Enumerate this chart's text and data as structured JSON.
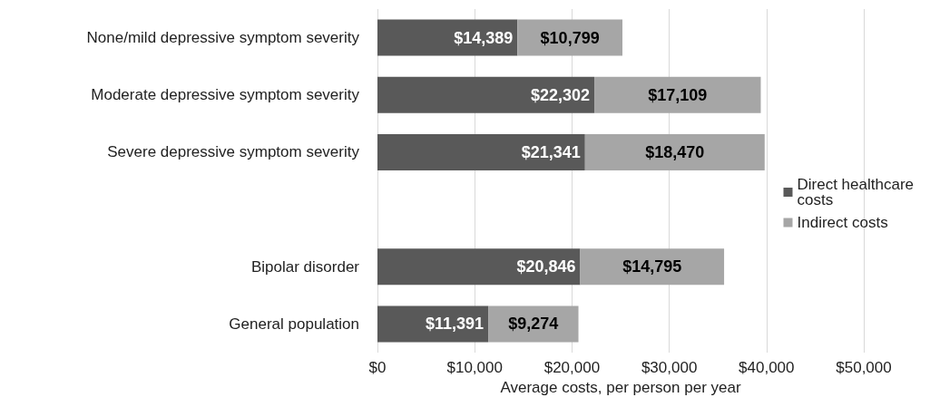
{
  "chart_data": {
    "type": "bar",
    "orientation": "horizontal",
    "stacked": true,
    "categories": [
      "None/mild depressive symptom severity",
      "Moderate depressive symptom severity",
      "Severe depressive symptom severity",
      null,
      "Bipolar disorder",
      "General population"
    ],
    "series": [
      {
        "name": "Direct healthcare costs",
        "color": "#595959",
        "values": [
          14389,
          22302,
          21341,
          null,
          20846,
          11391
        ],
        "value_labels": [
          "$14,389",
          "$22,302",
          "$21,341",
          null,
          "$20,846",
          "$11,391"
        ]
      },
      {
        "name": "Indirect costs",
        "color": "#a6a6a6",
        "values": [
          10799,
          17109,
          18470,
          null,
          14795,
          9274
        ],
        "value_labels": [
          "$10,799",
          "$17,109",
          "$18,470",
          null,
          "$14,795",
          "$9,274"
        ]
      }
    ],
    "xlabel": "Average costs, per person per year",
    "xlim": [
      0,
      50000
    ],
    "xticks": [
      {
        "value": 0,
        "label": "$0"
      },
      {
        "value": 10000,
        "label": "$10,000"
      },
      {
        "value": 20000,
        "label": "$20,000"
      },
      {
        "value": 30000,
        "label": "$30,000"
      },
      {
        "value": 40000,
        "label": "$40,000"
      },
      {
        "value": 50000,
        "label": "$50,000"
      }
    ],
    "grid": "x",
    "legend": "right"
  }
}
